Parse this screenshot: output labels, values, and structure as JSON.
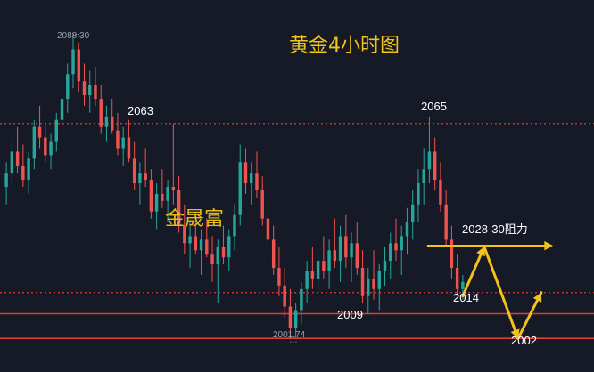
{
  "colors": {
    "background": "#151a26",
    "bull": "#26a69a",
    "bear": "#ef5350",
    "accent": "#f2c318",
    "level_line": "#e53935",
    "label": "#ffffff",
    "minor_label": "#9aa0ad"
  },
  "chart_data": {
    "type": "candlestick",
    "title": "黄金4小时图",
    "watermark": "金晟富",
    "y_range": [
      1997,
      2093
    ],
    "extreme_labels": {
      "high": "2088.30",
      "low": "2001.74"
    },
    "dotted_levels": [
      2063,
      2015
    ],
    "solid_levels": [
      2009,
      2002
    ],
    "annotations": [
      {
        "text": "2063",
        "price": 2063
      },
      {
        "text": "2065",
        "price": 2065
      },
      {
        "text": "2009",
        "price": 2009
      },
      {
        "text": "2014",
        "price": 2014
      },
      {
        "text": "2002",
        "price": 2002
      },
      {
        "text": "2028-30阻力",
        "price": 2028
      }
    ],
    "projection": [
      2014,
      2028,
      2002,
      2015
    ],
    "resistance_zone": [
      2028,
      2030
    ],
    "candles": [
      [
        2045,
        2052,
        2040,
        2049
      ],
      [
        2049,
        2058,
        2046,
        2055
      ],
      [
        2055,
        2062,
        2049,
        2051
      ],
      [
        2051,
        2057,
        2045,
        2047
      ],
      [
        2047,
        2055,
        2043,
        2053
      ],
      [
        2053,
        2064,
        2050,
        2062
      ],
      [
        2062,
        2068,
        2056,
        2059
      ],
      [
        2059,
        2063,
        2052,
        2054
      ],
      [
        2054,
        2060,
        2050,
        2058
      ],
      [
        2058,
        2066,
        2055,
        2064
      ],
      [
        2064,
        2072,
        2060,
        2070
      ],
      [
        2070,
        2080,
        2066,
        2077
      ],
      [
        2077,
        2088.3,
        2073,
        2084
      ],
      [
        2084,
        2086,
        2072,
        2075
      ],
      [
        2075,
        2080,
        2068,
        2071
      ],
      [
        2071,
        2078,
        2066,
        2074
      ],
      [
        2074,
        2079,
        2068,
        2070
      ],
      [
        2070,
        2074,
        2060,
        2062
      ],
      [
        2062,
        2068,
        2058,
        2065
      ],
      [
        2065,
        2070,
        2060,
        2061
      ],
      [
        2061,
        2066,
        2054,
        2056
      ],
      [
        2056,
        2062,
        2051,
        2059
      ],
      [
        2059,
        2064,
        2052,
        2053
      ],
      [
        2053,
        2058,
        2044,
        2046
      ],
      [
        2046,
        2052,
        2040,
        2049
      ],
      [
        2049,
        2056,
        2045,
        2047
      ],
      [
        2047,
        2050,
        2036,
        2038
      ],
      [
        2038,
        2046,
        2033,
        2043
      ],
      [
        2043,
        2050,
        2039,
        2041
      ],
      [
        2041,
        2047,
        2035,
        2045
      ],
      [
        2045,
        2063,
        2040,
        2044
      ],
      [
        2044,
        2048,
        2032,
        2034
      ],
      [
        2034,
        2040,
        2026,
        2029
      ],
      [
        2029,
        2035,
        2022,
        2031
      ],
      [
        2031,
        2038,
        2026,
        2027
      ],
      [
        2027,
        2033,
        2020,
        2030
      ],
      [
        2030,
        2036,
        2025,
        2026
      ],
      [
        2026,
        2031,
        2018,
        2023
      ],
      [
        2023,
        2030,
        2012,
        2028
      ],
      [
        2028,
        2034,
        2023,
        2025
      ],
      [
        2025,
        2033,
        2021,
        2031
      ],
      [
        2031,
        2040,
        2027,
        2037
      ],
      [
        2037,
        2057,
        2034,
        2052
      ],
      [
        2052,
        2056,
        2043,
        2046
      ],
      [
        2046,
        2052,
        2040,
        2049
      ],
      [
        2049,
        2055,
        2042,
        2044
      ],
      [
        2044,
        2048,
        2034,
        2036
      ],
      [
        2036,
        2041,
        2027,
        2030
      ],
      [
        2030,
        2034,
        2020,
        2022
      ],
      [
        2022,
        2028,
        2014,
        2017
      ],
      [
        2017,
        2022,
        2008,
        2011
      ],
      [
        2011,
        2016,
        2001.74,
        2005
      ],
      [
        2005,
        2012,
        2002,
        2010
      ],
      [
        2010,
        2018,
        2006,
        2016
      ],
      [
        2016,
        2024,
        2012,
        2021
      ],
      [
        2021,
        2028,
        2016,
        2019
      ],
      [
        2019,
        2026,
        2015,
        2024
      ],
      [
        2024,
        2031,
        2019,
        2021
      ],
      [
        2021,
        2030,
        2016,
        2027
      ],
      [
        2027,
        2036,
        2022,
        2024
      ],
      [
        2024,
        2034,
        2018,
        2031
      ],
      [
        2031,
        2037,
        2022,
        2025
      ],
      [
        2025,
        2032,
        2018,
        2029
      ],
      [
        2029,
        2035,
        2020,
        2022
      ],
      [
        2022,
        2027,
        2012,
        2014
      ],
      [
        2014,
        2022,
        2009,
        2019
      ],
      [
        2019,
        2027,
        2013,
        2016
      ],
      [
        2016,
        2023,
        2010,
        2021
      ],
      [
        2021,
        2028,
        2017,
        2024
      ],
      [
        2024,
        2032,
        2019,
        2029
      ],
      [
        2029,
        2036,
        2024,
        2027
      ],
      [
        2027,
        2034,
        2020,
        2031
      ],
      [
        2031,
        2039,
        2026,
        2035
      ],
      [
        2035,
        2044,
        2030,
        2040
      ],
      [
        2040,
        2050,
        2035,
        2046
      ],
      [
        2046,
        2056,
        2040,
        2050
      ],
      [
        2050,
        2065,
        2046,
        2055
      ],
      [
        2055,
        2059,
        2044,
        2047
      ],
      [
        2047,
        2052,
        2038,
        2040
      ],
      [
        2040,
        2044,
        2028,
        2030
      ],
      [
        2030,
        2034,
        2019,
        2022
      ],
      [
        2022,
        2026,
        2014,
        2016
      ],
      [
        2016,
        2020,
        2013,
        2018
      ]
    ]
  }
}
